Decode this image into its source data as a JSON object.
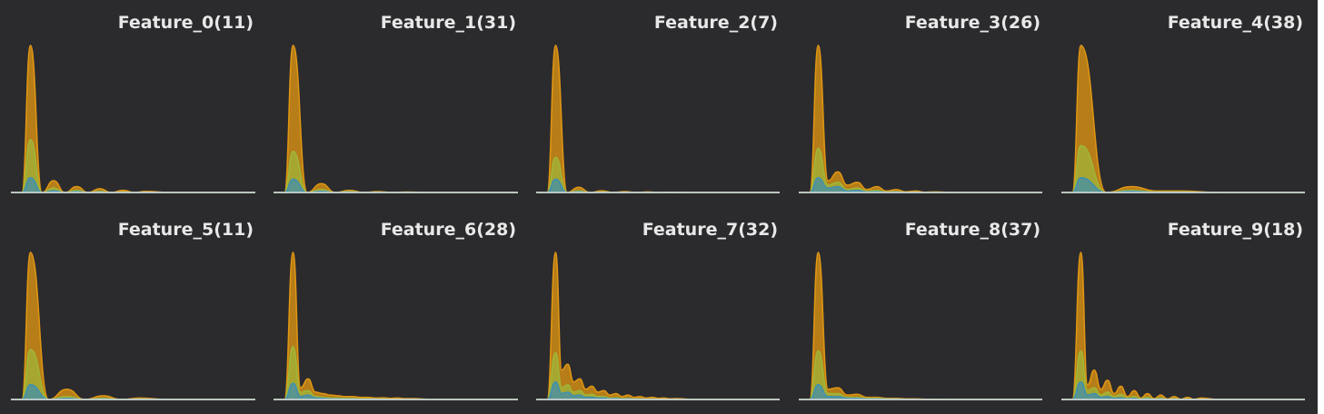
{
  "colors": {
    "background": "#2b2b2e",
    "axis": "#d9d9d9",
    "series": [
      "#e69a12",
      "#9fb83b",
      "#3a8fb7"
    ]
  },
  "chart_data": [
    {
      "type": "area",
      "title": "Feature_0(11)",
      "series": [
        {
          "values": [
            0,
            1.0,
            0,
            0.08,
            0,
            0.04,
            0,
            0.025,
            0,
            0.015,
            0,
            0.008,
            0
          ]
        },
        {
          "values": [
            0,
            0.36,
            0,
            0.03,
            0,
            0.015,
            0,
            0.008,
            0,
            0.004,
            0,
            0.002,
            0
          ]
        },
        {
          "values": [
            0,
            0.1,
            0,
            0.012,
            0,
            0.006,
            0,
            0.003,
            0,
            0.002,
            0,
            0.001,
            0
          ]
        }
      ]
    },
    {
      "type": "area",
      "title": "Feature_1(31)",
      "series": [
        {
          "values": [
            0,
            1.0,
            0,
            0.06,
            0,
            0.015,
            0,
            0.006,
            0,
            0.003,
            0
          ]
        },
        {
          "values": [
            0,
            0.28,
            0,
            0.02,
            0,
            0.006,
            0,
            0.002,
            0,
            0.001,
            0
          ]
        },
        {
          "values": [
            0,
            0.09,
            0,
            0.008,
            0,
            0.003,
            0,
            0.001,
            0,
            0,
            0
          ]
        }
      ]
    },
    {
      "type": "area",
      "title": "Feature_2(7)",
      "series": [
        {
          "values": [
            0,
            1.0,
            0,
            0.035,
            0,
            0.012,
            0,
            0.006,
            0,
            0.004,
            0,
            0.002,
            0
          ]
        },
        {
          "values": [
            0,
            0.24,
            0,
            0.012,
            0,
            0.005,
            0,
            0.002,
            0,
            0.001,
            0,
            0.001,
            0
          ]
        },
        {
          "values": [
            0,
            0.09,
            0,
            0.005,
            0,
            0.002,
            0,
            0.001,
            0,
            0,
            0,
            0,
            0
          ]
        }
      ]
    },
    {
      "type": "area",
      "title": "Feature_3(26)",
      "series": [
        {
          "values": [
            0,
            1.0,
            0.08,
            0.14,
            0.05,
            0.07,
            0.02,
            0.04,
            0.01,
            0.02,
            0.005,
            0.01,
            0.002,
            0.004,
            0
          ]
        },
        {
          "values": [
            0,
            0.3,
            0.05,
            0.07,
            0.02,
            0.03,
            0.01,
            0.015,
            0.004,
            0.006,
            0.002,
            0.003,
            0,
            0.001,
            0
          ]
        },
        {
          "values": [
            0,
            0.1,
            0.03,
            0.04,
            0.01,
            0.015,
            0.004,
            0.006,
            0.002,
            0.003,
            0,
            0.001,
            0,
            0,
            0
          ]
        }
      ]
    },
    {
      "type": "area",
      "title": "Feature_4(38)",
      "series": [
        {
          "values": [
            0,
            1.0,
            0,
            0.04,
            0.01,
            0.01,
            0
          ]
        },
        {
          "values": [
            0,
            0.32,
            0,
            0.015,
            0.004,
            0.004,
            0
          ]
        },
        {
          "values": [
            0,
            0.1,
            0,
            0.008,
            0.002,
            0.002,
            0
          ]
        }
      ]
    },
    {
      "type": "area",
      "title": "Feature_5(11)",
      "series": [
        {
          "values": [
            0,
            1.0,
            0,
            0.07,
            0,
            0.025,
            0,
            0.01,
            0
          ]
        },
        {
          "values": [
            0,
            0.34,
            0,
            0.02,
            0,
            0.008,
            0,
            0.003,
            0
          ]
        },
        {
          "values": [
            0,
            0.1,
            0,
            0.008,
            0,
            0.003,
            0,
            0.001,
            0
          ]
        }
      ]
    },
    {
      "type": "area",
      "title": "Feature_6(28)",
      "series": [
        {
          "values": [
            0,
            1.0,
            0.08,
            0.14,
            0.05,
            0.04,
            0.03,
            0.025,
            0.02,
            0.02,
            0.015,
            0.015,
            0.01,
            0.012,
            0.008,
            0.01,
            0.006,
            0.006,
            0
          ]
        },
        {
          "values": [
            0,
            0.36,
            0.05,
            0.06,
            0.02,
            0.015,
            0.01,
            0.01,
            0.008,
            0.008,
            0.005,
            0.005,
            0.004,
            0.004,
            0.002,
            0.002,
            0.001,
            0.001,
            0
          ]
        },
        {
          "values": [
            0,
            0.11,
            0.02,
            0.03,
            0.01,
            0.008,
            0.004,
            0.004,
            0.003,
            0.003,
            0.002,
            0.002,
            0.001,
            0.001,
            0,
            0,
            0,
            0,
            0
          ]
        }
      ]
    },
    {
      "type": "area",
      "title": "Feature_7(32)",
      "series": [
        {
          "values": [
            0,
            1.0,
            0.2,
            0.24,
            0.12,
            0.14,
            0.07,
            0.09,
            0.05,
            0.06,
            0.03,
            0.04,
            0.02,
            0.03,
            0.015,
            0.02,
            0.01,
            0.015,
            0.008,
            0.01,
            0.005,
            0.006,
            0
          ]
        },
        {
          "values": [
            0,
            0.32,
            0.08,
            0.1,
            0.05,
            0.06,
            0.03,
            0.035,
            0.02,
            0.02,
            0.01,
            0.012,
            0.006,
            0.008,
            0.004,
            0.005,
            0.002,
            0.003,
            0.001,
            0.002,
            0,
            0,
            0
          ]
        },
        {
          "values": [
            0,
            0.12,
            0.04,
            0.05,
            0.025,
            0.03,
            0.015,
            0.015,
            0.01,
            0.01,
            0.005,
            0.006,
            0.003,
            0.004,
            0.002,
            0.002,
            0.001,
            0.001,
            0,
            0,
            0,
            0,
            0
          ]
        }
      ]
    },
    {
      "type": "area",
      "title": "Feature_8(37)",
      "series": [
        {
          "values": [
            0,
            1.0,
            0.07,
            0.08,
            0.03,
            0.035,
            0.015,
            0.015,
            0.008,
            0.008,
            0.004,
            0.004,
            0.002,
            0.002,
            0
          ]
        },
        {
          "values": [
            0,
            0.33,
            0.04,
            0.04,
            0.015,
            0.015,
            0.008,
            0.008,
            0.004,
            0.004,
            0.002,
            0.002,
            0,
            0,
            0
          ]
        },
        {
          "values": [
            0,
            0.1,
            0.02,
            0.02,
            0.008,
            0.008,
            0.004,
            0.004,
            0.002,
            0.002,
            0,
            0,
            0,
            0,
            0
          ]
        }
      ]
    },
    {
      "type": "area",
      "title": "Feature_9(18)",
      "series": [
        {
          "values": [
            0,
            1.0,
            0.1,
            0.2,
            0.07,
            0.13,
            0.04,
            0.09,
            0.02,
            0.06,
            0.01,
            0.04,
            0.006,
            0.03,
            0.004,
            0.02,
            0.002,
            0.015,
            0.001,
            0.01,
            0
          ]
        },
        {
          "values": [
            0,
            0.33,
            0.06,
            0.08,
            0.03,
            0.05,
            0.02,
            0.035,
            0.01,
            0.02,
            0.005,
            0.015,
            0.003,
            0.01,
            0.002,
            0.006,
            0.001,
            0.004,
            0,
            0.002,
            0
          ]
        },
        {
          "values": [
            0,
            0.12,
            0.03,
            0.04,
            0.015,
            0.02,
            0.008,
            0.012,
            0.004,
            0.008,
            0.002,
            0.005,
            0.001,
            0.003,
            0,
            0.002,
            0,
            0.001,
            0,
            0,
            0
          ]
        }
      ]
    }
  ]
}
